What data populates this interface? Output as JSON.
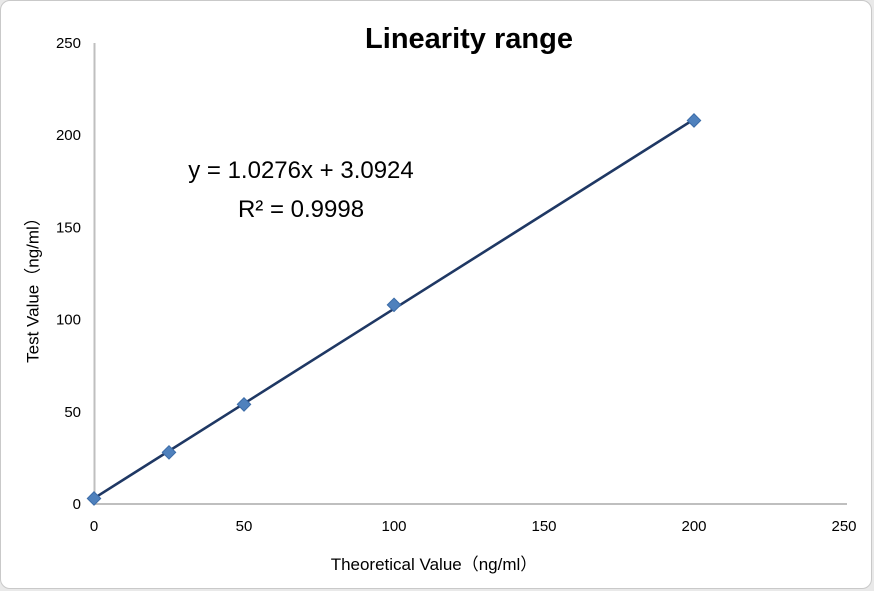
{
  "chart": {
    "title": "Linearity range",
    "equation": "y = 1.0276x + 3.0924",
    "r_squared": "R² = 0.9998"
  },
  "chart_data": {
    "type": "scatter",
    "title": "Linearity range",
    "xlabel": "Theoretical Value（ng/ml）",
    "ylabel": "Test Value（ng/ml）",
    "x": [
      0,
      25,
      50,
      100,
      200
    ],
    "y": [
      3,
      28,
      54,
      108,
      208
    ],
    "xlim": [
      0,
      250
    ],
    "ylim": [
      0,
      250
    ],
    "xticks": [
      0,
      50,
      100,
      150,
      200,
      250
    ],
    "yticks": [
      0,
      50,
      100,
      150,
      200,
      250
    ],
    "grid": false,
    "legend": false,
    "marker_shape": "diamond",
    "trendline": {
      "slope": 1.0276,
      "intercept": 3.0924,
      "x_start": 0,
      "x_end": 200,
      "equation": "y = 1.0276x + 3.0924",
      "r_squared": 0.9998
    },
    "colors": {
      "marker": "#4f81bd",
      "marker_edge": "#3c6ca8",
      "trendline": "#1f3864",
      "axis_line": "#bfbfbf",
      "text": "#000000",
      "background": "#ffffff"
    }
  }
}
